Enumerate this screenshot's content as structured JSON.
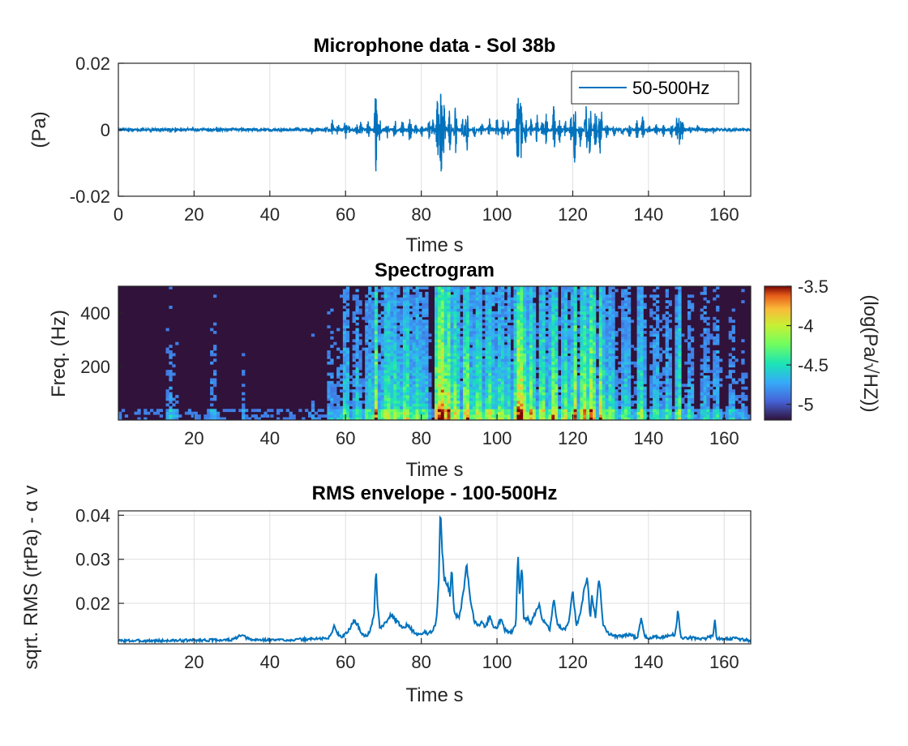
{
  "chart_data": [
    {
      "type": "line",
      "title": "Microphone data - Sol 38b",
      "xlabel": "Time s",
      "ylabel": "(Pa)",
      "xlim": [
        0,
        167
      ],
      "ylim": [
        -0.02,
        0.02
      ],
      "xticks": [
        0,
        20,
        40,
        60,
        80,
        100,
        120,
        140,
        160
      ],
      "yticks": [
        -0.02,
        0,
        0.02
      ],
      "ytick_labels": [
        "-0.02",
        "0",
        "0.02"
      ],
      "grid": true,
      "legend": {
        "placement": "top-right",
        "entries": [
          "50-500Hz"
        ]
      },
      "series": [
        {
          "name": "50-500Hz",
          "color": "#0072BD",
          "bursts": [
            {
              "t": 13.5,
              "a": 0.0013
            },
            {
              "t": 15,
              "a": 0.001
            },
            {
              "t": 16.5,
              "a": 0.0008
            },
            {
              "t": 24,
              "a": 0.0009
            },
            {
              "t": 26,
              "a": 0.0012
            },
            {
              "t": 51,
              "a": 0.0015
            },
            {
              "t": 52.5,
              "a": 0.001
            },
            {
              "t": 55,
              "a": 0.0015
            },
            {
              "t": 56.5,
              "a": 0.0035
            },
            {
              "t": 58,
              "a": 0.0022
            },
            {
              "t": 60,
              "a": 0.0038
            },
            {
              "t": 61,
              "a": 0.0015
            },
            {
              "t": 63,
              "a": 0.002
            },
            {
              "t": 64,
              "a": 0.0032
            },
            {
              "t": 66,
              "a": 0.0038
            },
            {
              "t": 68,
              "a": 0.0135
            },
            {
              "t": 69,
              "a": 0.004
            },
            {
              "t": 71,
              "a": 0.0028
            },
            {
              "t": 73,
              "a": 0.004
            },
            {
              "t": 75,
              "a": 0.0035
            },
            {
              "t": 77,
              "a": 0.0048
            },
            {
              "t": 78.5,
              "a": 0.0025
            },
            {
              "t": 80,
              "a": 0.003
            },
            {
              "t": 82,
              "a": 0.0035
            },
            {
              "t": 83,
              "a": 0.0045
            },
            {
              "t": 84.3,
              "a": 0.0105
            },
            {
              "t": 85.2,
              "a": 0.0165
            },
            {
              "t": 86,
              "a": 0.009
            },
            {
              "t": 87.5,
              "a": 0.0075
            },
            {
              "t": 89,
              "a": 0.0085
            },
            {
              "t": 91,
              "a": 0.0045
            },
            {
              "t": 92,
              "a": 0.008
            },
            {
              "t": 94,
              "a": 0.0035
            },
            {
              "t": 96,
              "a": 0.003
            },
            {
              "t": 98,
              "a": 0.0035
            },
            {
              "t": 100,
              "a": 0.0045
            },
            {
              "t": 101.5,
              "a": 0.004
            },
            {
              "t": 103,
              "a": 0.0025
            },
            {
              "t": 105.5,
              "a": 0.014
            },
            {
              "t": 106.3,
              "a": 0.0115
            },
            {
              "t": 107.5,
              "a": 0.005
            },
            {
              "t": 109,
              "a": 0.0038
            },
            {
              "t": 110.5,
              "a": 0.0055
            },
            {
              "t": 112,
              "a": 0.0035
            },
            {
              "t": 113,
              "a": 0.0055
            },
            {
              "t": 115,
              "a": 0.0085
            },
            {
              "t": 116.5,
              "a": 0.0045
            },
            {
              "t": 118,
              "a": 0.0035
            },
            {
              "t": 119.5,
              "a": 0.005
            },
            {
              "t": 120.5,
              "a": 0.011
            },
            {
              "t": 122,
              "a": 0.006
            },
            {
              "t": 123.5,
              "a": 0.0085
            },
            {
              "t": 124.5,
              "a": 0.0095
            },
            {
              "t": 126,
              "a": 0.008
            },
            {
              "t": 127.3,
              "a": 0.012
            },
            {
              "t": 129,
              "a": 0.004
            },
            {
              "t": 131,
              "a": 0.0025
            },
            {
              "t": 133,
              "a": 0.0025
            },
            {
              "t": 135,
              "a": 0.003
            },
            {
              "t": 137,
              "a": 0.0035
            },
            {
              "t": 138.5,
              "a": 0.005
            },
            {
              "t": 140,
              "a": 0.0025
            },
            {
              "t": 142,
              "a": 0.002
            },
            {
              "t": 144,
              "a": 0.0025
            },
            {
              "t": 146,
              "a": 0.003
            },
            {
              "t": 147.5,
              "a": 0.0045
            },
            {
              "t": 148.3,
              "a": 0.0065
            },
            {
              "t": 149,
              "a": 0.0035
            },
            {
              "t": 151,
              "a": 0.002
            },
            {
              "t": 153,
              "a": 0.0018
            },
            {
              "t": 155,
              "a": 0.0015
            },
            {
              "t": 157,
              "a": 0.0012
            }
          ]
        }
      ]
    },
    {
      "type": "heatmap",
      "title": "Spectrogram",
      "xlabel": "Time s",
      "ylabel": "Freq. (Hz)",
      "xlim": [
        0,
        167
      ],
      "ylim": [
        0,
        500
      ],
      "xticks": [
        20,
        40,
        60,
        80,
        100,
        120,
        140,
        160
      ],
      "yticks": [
        200,
        400
      ],
      "colorbar": {
        "label": "(log(Pa/√HZ))",
        "range": [
          -5.2,
          -3.5
        ],
        "ticks": [
          -5,
          -4.5,
          -4,
          -3.5
        ],
        "colormap": "turbo"
      },
      "activity": [
        {
          "t": 5,
          "s": 0.05,
          "w": 3
        },
        {
          "t": 13.5,
          "s": 0.3,
          "w": 1
        },
        {
          "t": 15,
          "s": 0.25,
          "w": 1
        },
        {
          "t": 25,
          "s": 0.25,
          "w": 1.5
        },
        {
          "t": 33,
          "s": 0.2,
          "w": 1
        },
        {
          "t": 51,
          "s": 0.2,
          "w": 1
        },
        {
          "t": 56,
          "s": 0.3,
          "w": 1
        },
        {
          "t": 58,
          "s": 0.25,
          "w": 2
        },
        {
          "t": 60,
          "s": 0.45,
          "w": 1.5
        },
        {
          "t": 63,
          "s": 0.4,
          "w": 1.5
        },
        {
          "t": 66,
          "s": 0.45,
          "w": 1.5
        },
        {
          "t": 68,
          "s": 0.75,
          "w": 1
        },
        {
          "t": 71,
          "s": 0.6,
          "w": 2
        },
        {
          "t": 73,
          "s": 0.55,
          "w": 2
        },
        {
          "t": 76,
          "s": 0.6,
          "w": 2
        },
        {
          "t": 79,
          "s": 0.5,
          "w": 2
        },
        {
          "t": 81,
          "s": 0.45,
          "w": 1.5
        },
        {
          "t": 84.5,
          "s": 0.95,
          "w": 1
        },
        {
          "t": 85.5,
          "s": 1.0,
          "w": 1.5
        },
        {
          "t": 87,
          "s": 0.85,
          "w": 1.5
        },
        {
          "t": 89,
          "s": 0.7,
          "w": 1.5
        },
        {
          "t": 92,
          "s": 0.75,
          "w": 1.5
        },
        {
          "t": 95,
          "s": 0.6,
          "w": 2
        },
        {
          "t": 98,
          "s": 0.6,
          "w": 2
        },
        {
          "t": 101,
          "s": 0.55,
          "w": 2
        },
        {
          "t": 103,
          "s": 0.5,
          "w": 1.5
        },
        {
          "t": 105.5,
          "s": 0.95,
          "w": 1
        },
        {
          "t": 106.5,
          "s": 0.9,
          "w": 1.5
        },
        {
          "t": 109,
          "s": 0.7,
          "w": 1.5
        },
        {
          "t": 112,
          "s": 0.65,
          "w": 1.5
        },
        {
          "t": 115,
          "s": 0.75,
          "w": 1.5
        },
        {
          "t": 118,
          "s": 0.6,
          "w": 1.5
        },
        {
          "t": 120.5,
          "s": 0.8,
          "w": 1
        },
        {
          "t": 123,
          "s": 0.8,
          "w": 1.5
        },
        {
          "t": 125,
          "s": 0.85,
          "w": 1.5
        },
        {
          "t": 127.5,
          "s": 0.8,
          "w": 1
        },
        {
          "t": 130,
          "s": 0.5,
          "w": 2
        },
        {
          "t": 134,
          "s": 0.45,
          "w": 2
        },
        {
          "t": 138,
          "s": 0.55,
          "w": 1.5
        },
        {
          "t": 142,
          "s": 0.4,
          "w": 2
        },
        {
          "t": 145,
          "s": 0.4,
          "w": 1.5
        },
        {
          "t": 148,
          "s": 0.6,
          "w": 1
        },
        {
          "t": 151,
          "s": 0.35,
          "w": 1.5
        },
        {
          "t": 155,
          "s": 0.35,
          "w": 2
        },
        {
          "t": 158,
          "s": 0.35,
          "w": 1.5
        },
        {
          "t": 162,
          "s": 0.3,
          "w": 2
        },
        {
          "t": 165,
          "s": 0.25,
          "w": 1.5
        }
      ]
    },
    {
      "type": "line",
      "title": "RMS envelope - 100-500Hz",
      "xlabel": "Time s",
      "ylabel": "sqrt. RMS (rtPa) - α v",
      "xlim": [
        0,
        167
      ],
      "ylim": [
        0.0108,
        0.041
      ],
      "xticks": [
        20,
        40,
        60,
        80,
        100,
        120,
        140,
        160
      ],
      "yticks": [
        0.02,
        0.03,
        0.04
      ],
      "ytick_labels": [
        "0.02",
        "0.03",
        "0.04"
      ],
      "grid": true,
      "series": [
        {
          "name": "",
          "color": "#0072BD",
          "x": [
            0,
            10,
            20,
            30,
            32.5,
            35,
            45,
            50,
            52,
            55,
            56,
            57,
            58,
            59,
            60,
            61,
            62,
            63,
            64,
            65,
            66,
            67,
            67.6,
            68,
            68.5,
            69,
            70,
            71,
            72,
            73,
            74,
            75,
            76,
            77,
            78,
            79,
            80,
            81,
            82,
            83,
            84,
            84.6,
            85,
            85.4,
            86,
            87,
            87.6,
            88,
            88.6,
            89,
            90,
            91,
            92,
            93,
            94,
            95,
            96,
            97,
            98,
            99,
            100,
            101,
            102,
            103,
            104,
            105,
            105.5,
            106,
            106.6,
            107,
            108,
            109,
            110,
            111,
            112,
            113,
            114,
            115,
            116,
            117,
            118,
            119,
            120,
            121,
            122,
            123,
            124,
            124.6,
            125,
            126,
            127,
            128,
            129,
            130,
            131,
            133,
            135,
            137,
            138,
            139,
            140,
            142,
            144,
            146,
            147,
            147.8,
            148.5,
            149,
            151,
            153,
            155,
            156,
            157,
            157.5,
            158,
            160,
            163,
            167
          ],
          "y": [
            0.0115,
            0.0115,
            0.0116,
            0.0117,
            0.0127,
            0.0117,
            0.0117,
            0.0118,
            0.012,
            0.012,
            0.0125,
            0.015,
            0.013,
            0.0125,
            0.013,
            0.014,
            0.016,
            0.0155,
            0.0135,
            0.0125,
            0.013,
            0.015,
            0.0185,
            0.0282,
            0.019,
            0.0145,
            0.015,
            0.016,
            0.0175,
            0.0165,
            0.0155,
            0.0145,
            0.015,
            0.0145,
            0.0135,
            0.0128,
            0.013,
            0.0135,
            0.013,
            0.014,
            0.016,
            0.0245,
            0.041,
            0.034,
            0.026,
            0.0245,
            0.0215,
            0.0285,
            0.019,
            0.0175,
            0.0165,
            0.0215,
            0.0285,
            0.0205,
            0.016,
            0.015,
            0.016,
            0.0145,
            0.017,
            0.015,
            0.0145,
            0.0165,
            0.014,
            0.0135,
            0.0135,
            0.0155,
            0.031,
            0.022,
            0.0295,
            0.0165,
            0.0165,
            0.0155,
            0.0175,
            0.02,
            0.0165,
            0.0155,
            0.014,
            0.0215,
            0.015,
            0.0145,
            0.014,
            0.016,
            0.0225,
            0.015,
            0.0175,
            0.0235,
            0.0255,
            0.016,
            0.0215,
            0.017,
            0.026,
            0.0155,
            0.0135,
            0.013,
            0.0125,
            0.0125,
            0.013,
            0.012,
            0.0165,
            0.0125,
            0.012,
            0.0125,
            0.0122,
            0.013,
            0.0125,
            0.0185,
            0.0125,
            0.012,
            0.0122,
            0.012,
            0.012,
            0.0125,
            0.0125,
            0.0162,
            0.012,
            0.012,
            0.012,
            0.0115
          ]
        }
      ]
    }
  ]
}
